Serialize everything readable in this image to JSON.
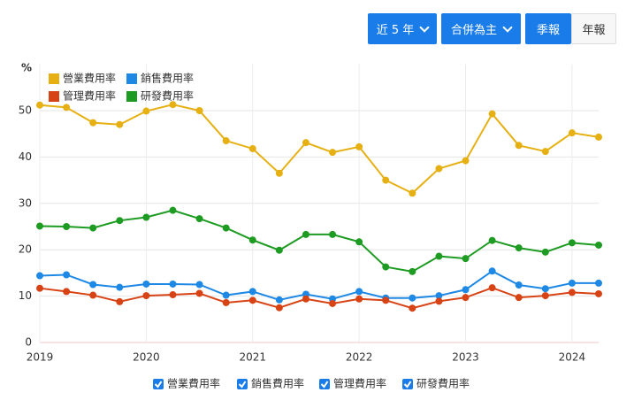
{
  "ui": {
    "buttons": [
      "近 5 年",
      "合併為主",
      "季報",
      "年報"
    ]
  },
  "chart_data": {
    "type": "line",
    "y_label": "%",
    "x": [
      2019,
      2019.25,
      2019.5,
      2019.75,
      2020,
      2020.25,
      2020.5,
      2020.75,
      2021,
      2021.25,
      2021.5,
      2021.75,
      2022,
      2022.25,
      2022.5,
      2022.75,
      2023,
      2023.25,
      2023.5,
      2023.75,
      2024,
      2024.25
    ],
    "series": [
      {
        "name": "營業費用率",
        "color": "#e6b012",
        "values": [
          51.2,
          50.7,
          47.4,
          47.0,
          49.9,
          51.3,
          50.0,
          43.5,
          41.8,
          36.5,
          43.1,
          41.0,
          42.2,
          35.0,
          32.2,
          37.5,
          39.2,
          49.3,
          42.5,
          41.2,
          45.2,
          44.3
        ]
      },
      {
        "name": "銷售費用率",
        "color": "#1e88e5",
        "values": [
          14.4,
          14.6,
          12.5,
          11.9,
          12.6,
          12.6,
          12.5,
          10.2,
          11.0,
          9.2,
          10.4,
          9.4,
          11.0,
          9.6,
          9.6,
          10.1,
          11.4,
          15.4,
          12.4,
          11.6,
          12.8,
          12.8
        ]
      },
      {
        "name": "管理費用率",
        "color": "#d84315",
        "values": [
          11.7,
          11.0,
          10.2,
          8.8,
          10.1,
          10.3,
          10.6,
          8.6,
          9.1,
          7.5,
          9.4,
          8.4,
          9.4,
          9.1,
          7.4,
          8.9,
          9.7,
          11.8,
          9.7,
          10.1,
          10.8,
          10.5
        ]
      },
      {
        "name": "研發費用率",
        "color": "#1e9b22",
        "values": [
          25.1,
          25.0,
          24.7,
          26.3,
          27.0,
          28.5,
          26.7,
          24.7,
          22.1,
          19.9,
          23.3,
          23.3,
          21.7,
          16.3,
          15.3,
          18.6,
          18.1,
          22.0,
          20.4,
          19.5,
          21.5,
          21.0
        ]
      }
    ],
    "xlim": [
      2019,
      2024.25
    ],
    "xticks": [
      2019,
      2020,
      2021,
      2022,
      2023,
      2024
    ],
    "ylim": [
      0,
      60
    ],
    "yticks": [
      0,
      10,
      20,
      30,
      40,
      50
    ],
    "grid": true
  }
}
